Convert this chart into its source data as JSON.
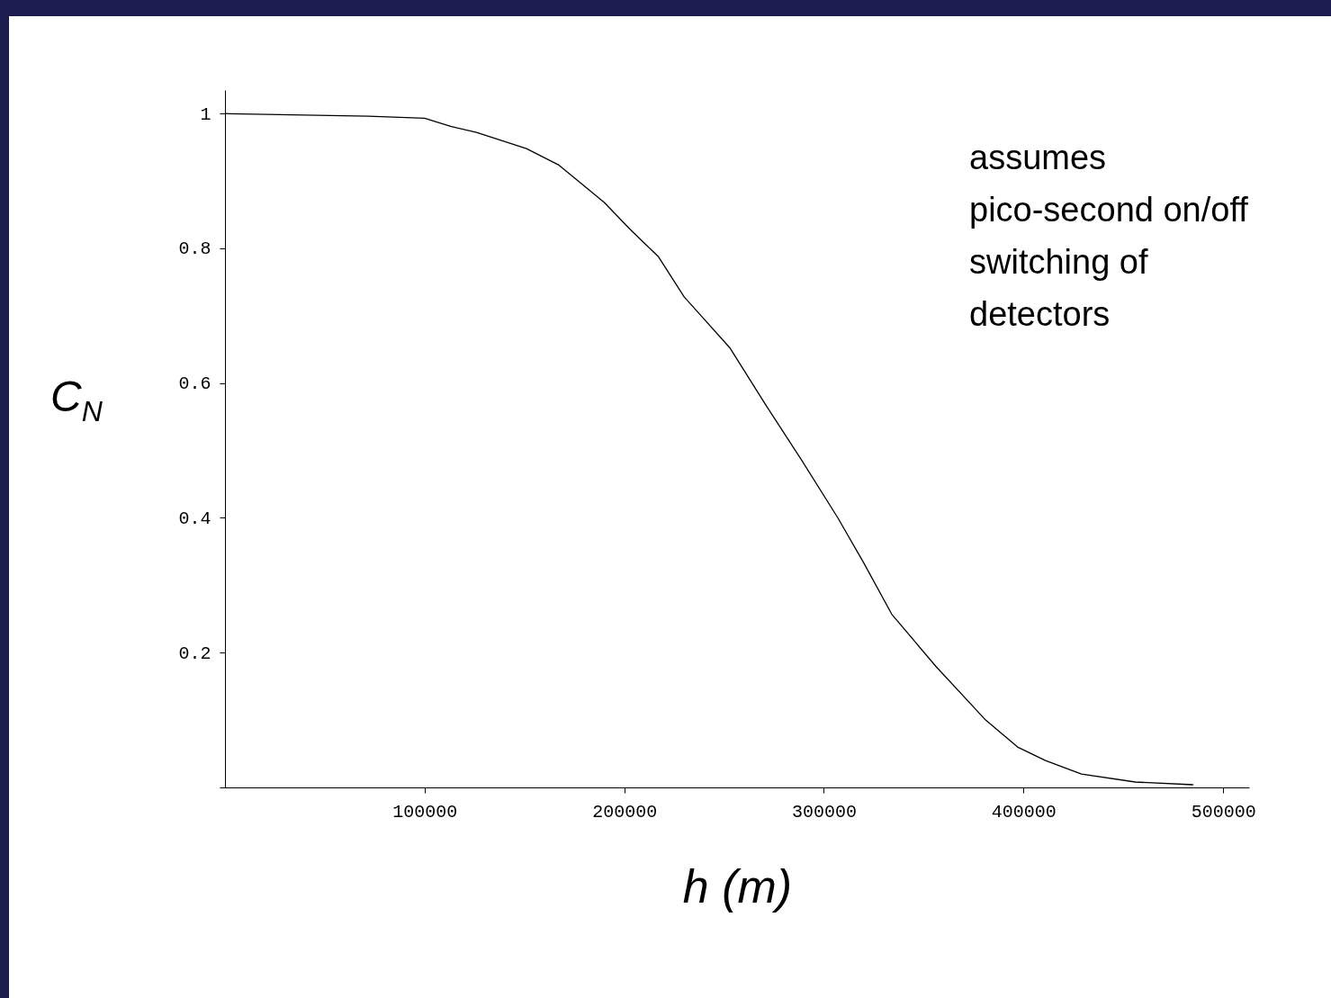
{
  "chart_data": {
    "type": "line",
    "xlabel": "h (m)",
    "ylabel": "C$_{N}$",
    "x": [
      0,
      72000,
      100000,
      113000,
      126000,
      151000,
      167000,
      190000,
      203000,
      217000,
      230000,
      253000,
      271000,
      289000,
      307000,
      320000,
      334000,
      356000,
      381000,
      397000,
      411000,
      429000,
      456000,
      485000
    ],
    "series": [
      {
        "color": "#000000",
        "values": [
          1,
          0.996,
          0.993,
          0.981,
          0.972,
          0.948,
          0.924,
          0.868,
          0.828,
          0.788,
          0.728,
          0.652,
          0.567,
          0.485,
          0.4,
          0.333,
          0.257,
          0.18,
          0.1,
          0.06,
          0.04,
          0.02,
          0.008,
          0.004
        ]
      }
    ],
    "xlim": [
      0,
      513000
    ],
    "ylim": [
      0,
      1.035
    ],
    "xticks": [
      100000,
      200000,
      300000,
      400000,
      500000
    ],
    "yticks": [
      {
        "value": 0,
        "label": null
      },
      0.2,
      0.4,
      0.6,
      0.8,
      1
    ],
    "grid": false,
    "marker": "none",
    "line_style": "solid",
    "annotations": [
      "assumes pico-second on/off switching of detectors"
    ]
  }
}
